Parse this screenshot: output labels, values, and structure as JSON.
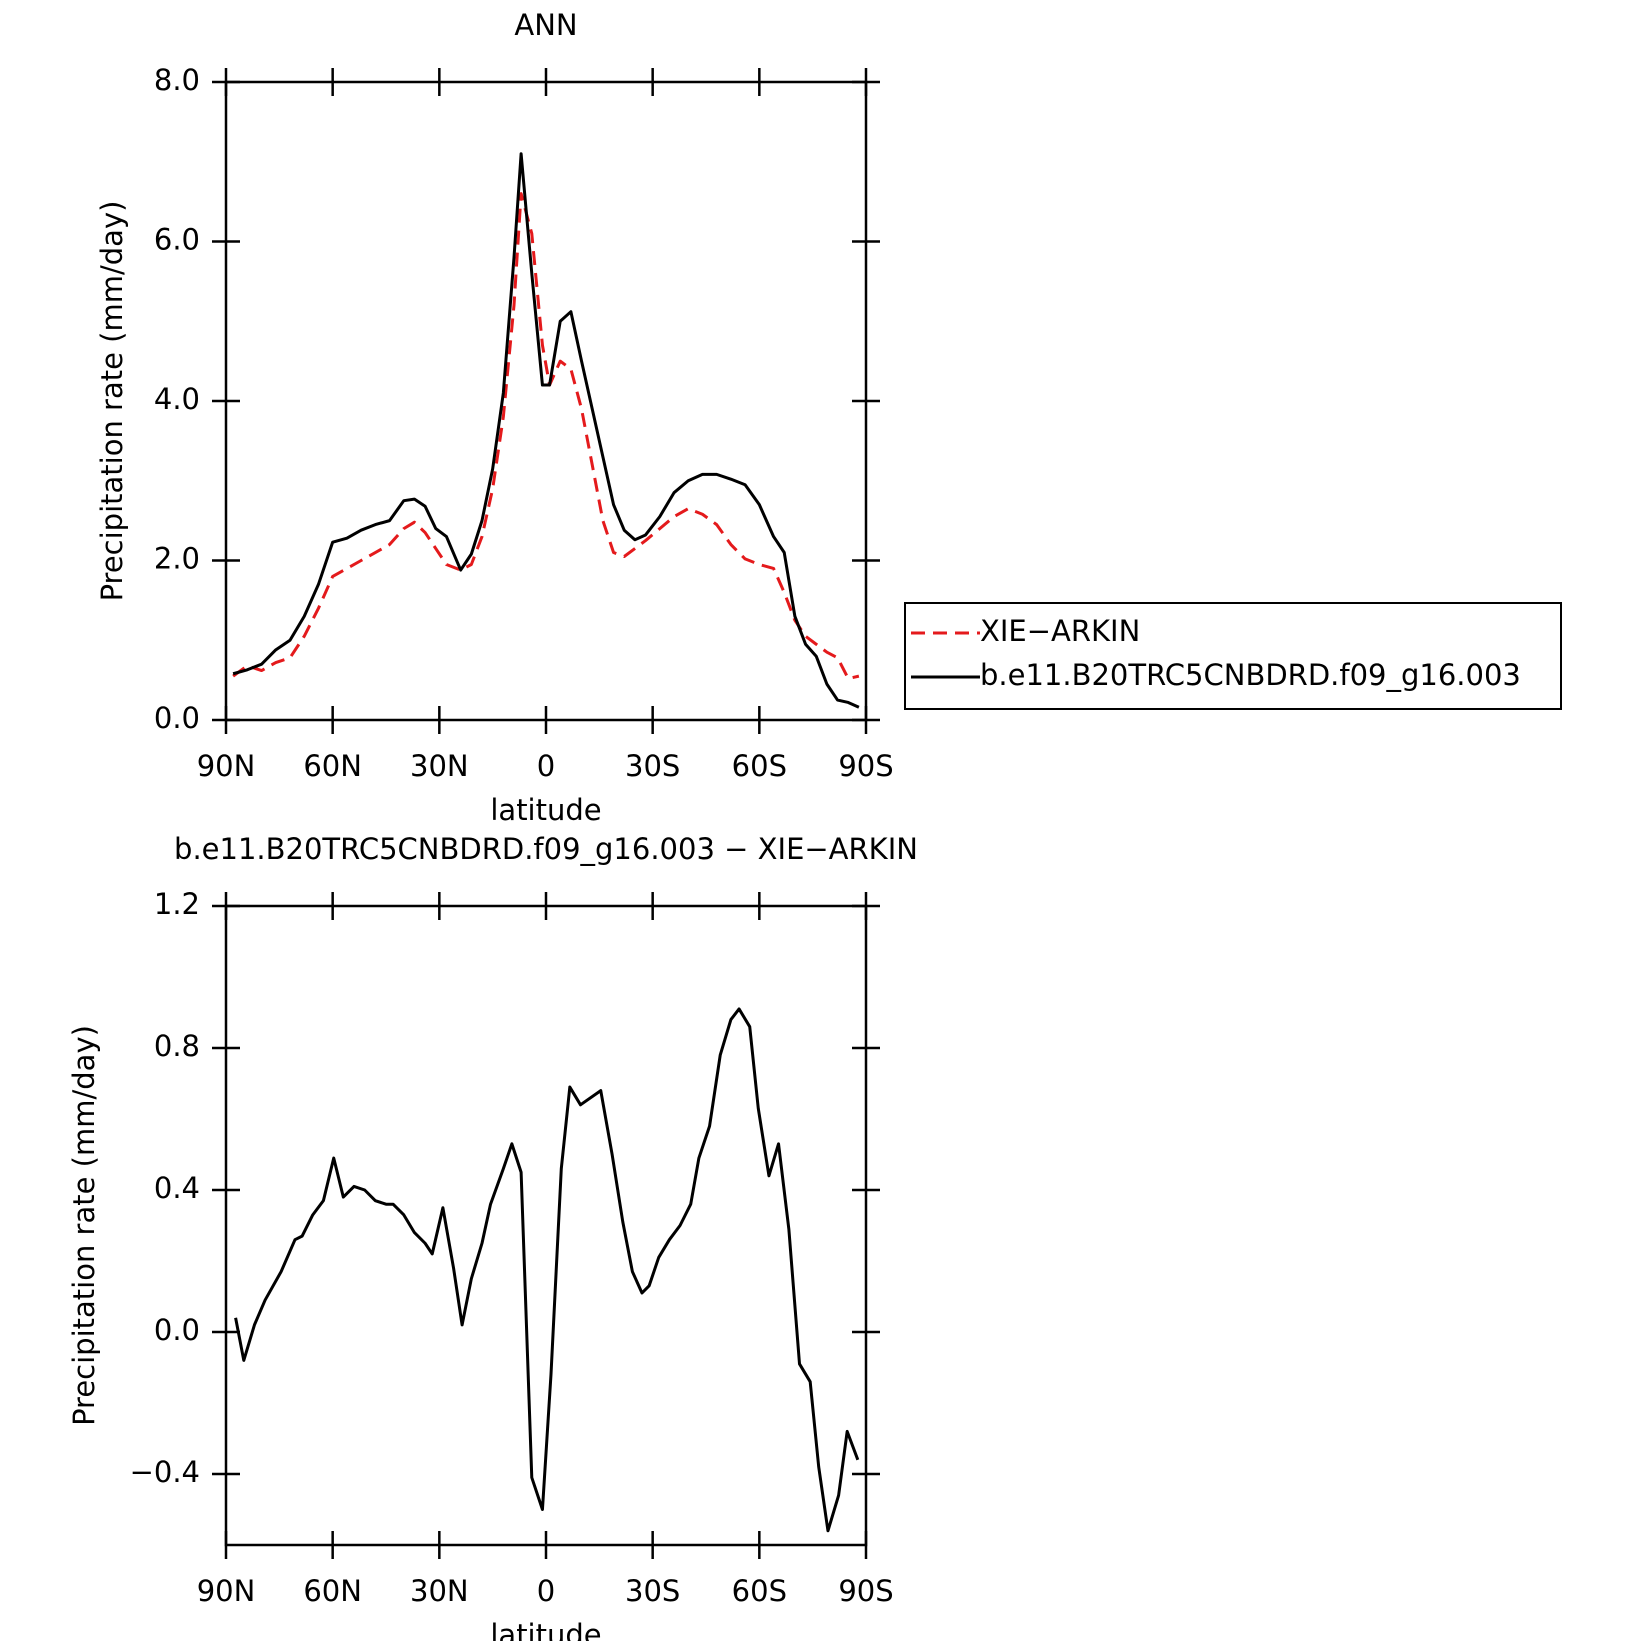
{
  "chart_data": [
    {
      "type": "line",
      "title": "ANN",
      "xlabel": "latitude",
      "ylabel": "Precipitation rate (mm/day)",
      "x": [
        88,
        84,
        80,
        76,
        72,
        68,
        64,
        60,
        56,
        52,
        48,
        44,
        40,
        37,
        34,
        31,
        28,
        24,
        21,
        18,
        15,
        12,
        9,
        7,
        4,
        1,
        -1,
        -4,
        -7,
        -10,
        -13,
        -16,
        -19,
        -22,
        -25,
        -28,
        -32,
        -36,
        -40,
        -44,
        -48,
        -52,
        -56,
        -60,
        -64,
        -67,
        -70,
        -73,
        -76,
        -79,
        -82,
        -85,
        -88
      ],
      "xlim": [
        90,
        -90
      ],
      "xticks": [
        {
          "value": 90,
          "label": "90N"
        },
        {
          "value": 60,
          "label": "60N"
        },
        {
          "value": 30,
          "label": "30N"
        },
        0,
        {
          "value": -30,
          "label": "30S"
        },
        {
          "value": -60,
          "label": "60S"
        },
        {
          "value": -90,
          "label": "90S"
        }
      ],
      "ylim": [
        0,
        8
      ],
      "yticks": [
        {
          "value": 0,
          "label": "0.0"
        },
        {
          "value": 2,
          "label": "2.0"
        },
        {
          "value": 4,
          "label": "4.0"
        },
        {
          "value": 6,
          "label": "6.0"
        },
        {
          "value": 8,
          "label": "8.0"
        }
      ],
      "legend": "outside-right",
      "series": [
        {
          "name": "XIE−ARKIN",
          "color": "#e41a1c",
          "linestyle": "dashed",
          "values": [
            0.55,
            0.68,
            0.62,
            0.72,
            0.78,
            1.05,
            1.4,
            1.8,
            1.9,
            2.0,
            2.1,
            2.2,
            2.4,
            2.48,
            2.35,
            2.15,
            1.95,
            1.88,
            1.95,
            2.3,
            2.9,
            3.8,
            5.2,
            6.6,
            6.1,
            4.7,
            4.2,
            4.5,
            4.4,
            3.9,
            3.2,
            2.5,
            2.1,
            2.05,
            2.15,
            2.25,
            2.4,
            2.55,
            2.65,
            2.58,
            2.45,
            2.2,
            2.02,
            1.95,
            1.9,
            1.6,
            1.25,
            1.05,
            0.95,
            0.85,
            0.78,
            0.52,
            0.55
          ]
        },
        {
          "name": "b.e11.B20TRC5CNBDRD.f09_g16.003",
          "color": "#000000",
          "linestyle": "solid",
          "values": [
            0.58,
            0.63,
            0.7,
            0.88,
            1.0,
            1.3,
            1.7,
            2.23,
            2.28,
            2.38,
            2.45,
            2.5,
            2.75,
            2.77,
            2.68,
            2.4,
            2.3,
            1.88,
            2.08,
            2.5,
            3.15,
            4.1,
            5.8,
            7.1,
            5.6,
            4.2,
            4.2,
            5.0,
            5.12,
            4.5,
            3.9,
            3.3,
            2.7,
            2.38,
            2.26,
            2.32,
            2.55,
            2.85,
            3.0,
            3.08,
            3.08,
            3.02,
            2.95,
            2.7,
            2.3,
            2.1,
            1.3,
            0.95,
            0.8,
            0.45,
            0.25,
            0.22,
            0.16
          ]
        }
      ]
    },
    {
      "type": "line",
      "title": "b.e11.B20TRC5CNBDRD.f09_g16.003 − XIE−ARKIN",
      "xlabel": "latitude",
      "ylabel": "Precipitation rate (mm/day)",
      "x": [
        87.3,
        85,
        82,
        79,
        74.5,
        70.6,
        68.6,
        65.6,
        62.6,
        59.7,
        57,
        54,
        51,
        48,
        45,
        43,
        40,
        37,
        34,
        32,
        29,
        26,
        23.6,
        21,
        18,
        15.6,
        12,
        9.6,
        7,
        4,
        1,
        -1.4,
        -4.3,
        -6.7,
        -9.7,
        -15.4,
        -18.6,
        -21.6,
        -24.3,
        -27,
        -29,
        -31.7,
        -34.7,
        -37.7,
        -40.7,
        -43,
        -46,
        -49,
        -52,
        -54.3,
        -57.3,
        -59.7,
        -62.7,
        -65.4,
        -68.3,
        -71.3,
        -74.3,
        -76.7,
        -79.3,
        -82.3,
        -84.7,
        -87.7
      ],
      "xlim": [
        90,
        -90
      ],
      "xticks": [
        {
          "value": 90,
          "label": "90N"
        },
        {
          "value": 60,
          "label": "60N"
        },
        {
          "value": 30,
          "label": "30N"
        },
        0,
        {
          "value": -30,
          "label": "30S"
        },
        {
          "value": -60,
          "label": "60S"
        },
        {
          "value": -90,
          "label": "90S"
        }
      ],
      "ylim": [
        -0.6,
        1.2
      ],
      "yticks": [
        {
          "value": -0.4,
          "label": "−0.4"
        },
        {
          "value": 0,
          "label": "0.0"
        },
        0.4,
        0.8,
        1.2
      ],
      "series": [
        {
          "color": "#000000",
          "linestyle": "solid",
          "values": [
            0.04,
            -0.08,
            0.02,
            0.09,
            0.17,
            0.26,
            0.27,
            0.33,
            0.37,
            0.49,
            0.38,
            0.41,
            0.4,
            0.37,
            0.36,
            0.36,
            0.33,
            0.28,
            0.25,
            0.22,
            0.35,
            0.18,
            0.02,
            0.15,
            0.25,
            0.36,
            0.46,
            0.53,
            0.45,
            -0.41,
            -0.5,
            -0.12,
            0.46,
            0.69,
            0.64,
            0.68,
            0.5,
            0.31,
            0.17,
            0.11,
            0.13,
            0.21,
            0.26,
            0.3,
            0.36,
            0.49,
            0.58,
            0.78,
            0.88,
            0.91,
            0.86,
            0.63,
            0.44,
            0.53,
            0.29,
            -0.09,
            -0.14,
            -0.38,
            -0.56,
            -0.46,
            -0.28,
            -0.36
          ]
        }
      ]
    }
  ]
}
